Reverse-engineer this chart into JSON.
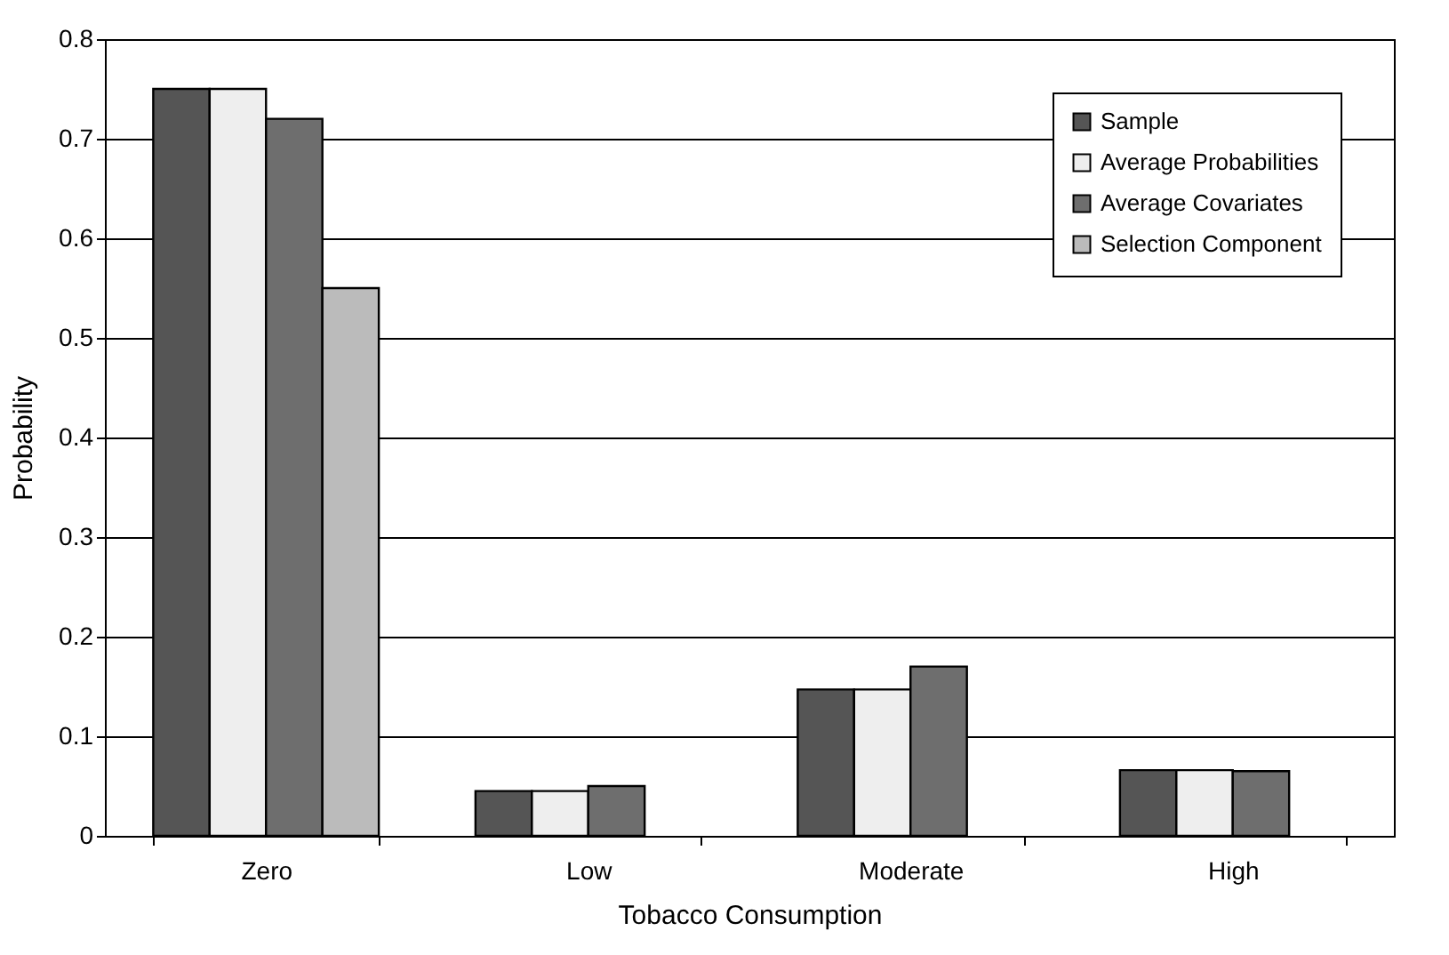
{
  "chart_data": {
    "type": "bar",
    "xlabel": "Tobacco Consumption",
    "ylabel": "Probability",
    "categories": [
      "Zero",
      "Low",
      "Moderate",
      "High"
    ],
    "series": [
      {
        "name": "Sample",
        "color": "#555555",
        "values": [
          0.75,
          0.045,
          0.147,
          0.066
        ]
      },
      {
        "name": "Average Probabilities",
        "color": "#eeeeee",
        "values": [
          0.75,
          0.045,
          0.147,
          0.066
        ]
      },
      {
        "name": "Average Covariates",
        "color": "#6e6e6e",
        "values": [
          0.72,
          0.05,
          0.17,
          0.065
        ]
      },
      {
        "name": "Selection Component",
        "color": "#bbbbbb",
        "values": [
          0.55,
          null,
          null,
          null
        ]
      }
    ],
    "ylim": [
      0,
      0.8
    ],
    "yticks": [
      0,
      0.1,
      0.2,
      0.3,
      0.4,
      0.5,
      0.6,
      0.7,
      0.8
    ],
    "grid": "y",
    "legend": "top right"
  }
}
